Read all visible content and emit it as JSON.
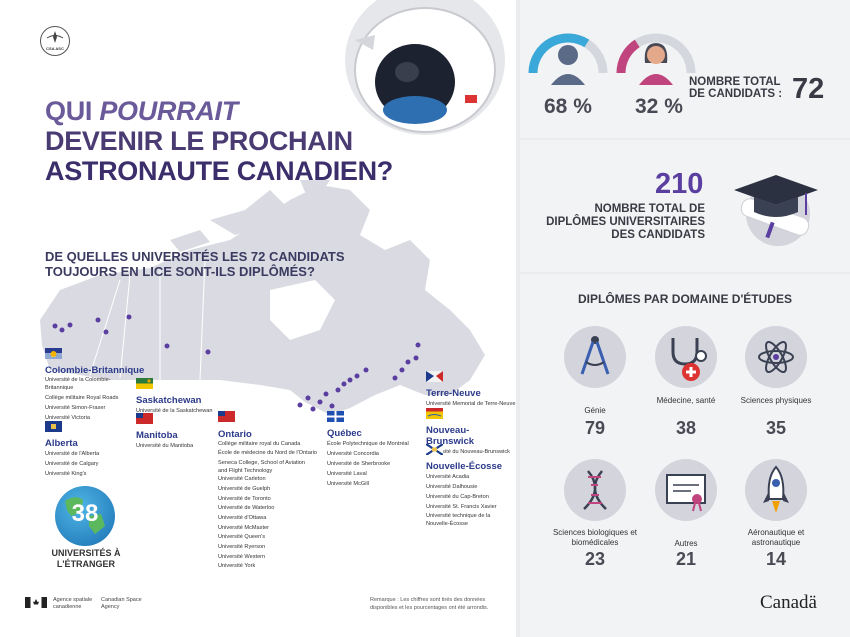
{
  "agency_logo": {
    "text": "CSA ASC"
  },
  "title": {
    "line1_a": "QUI ",
    "line1_b": "POURRAIT",
    "line2": "DEVENIR LE PROCHAIN",
    "line3": "ASTRONAUTE CANADIEN?"
  },
  "question": "DE QUELLES UNIVERSITÉS LES 72 CANDIDATS TOUJOURS EN LICE SONT-ILS DIPLÔMÉS?",
  "provinces": {
    "bc": {
      "name": "Colombie-Britannique",
      "unis": [
        "Université de la Colombie-Britannique",
        "Collège militaire Royal Roads",
        "Université Simon-Fraser",
        "Université Victoria"
      ]
    },
    "alberta": {
      "name": "Alberta",
      "unis": [
        "Université de l'Alberta",
        "Université de Calgary",
        "Université King's"
      ]
    },
    "saskatchewan": {
      "name": "Saskatchewan",
      "unis": [
        "Université de la Saskatchewan"
      ]
    },
    "manitoba": {
      "name": "Manitoba",
      "unis": [
        "Université du Manitoba"
      ]
    },
    "ontario": {
      "name": "Ontario",
      "unis": [
        "Collège militaire royal du Canada",
        "École de médecine du Nord de l'Ontario",
        "Seneca College, School of Aviation and Flight Technology",
        "Université Carleton",
        "Université de Guelph",
        "Université de Toronto",
        "Université de Waterloo",
        "Université d'Ottawa",
        "Université McMaster",
        "Université Queen's",
        "Université Ryerson",
        "Université Western",
        "Université York"
      ]
    },
    "quebec": {
      "name": "Québec",
      "unis": [
        "École Polytechnique de Montréal",
        "Université Concordia",
        "Université de Sherbrooke",
        "Université Laval",
        "Université McGill"
      ]
    },
    "nl": {
      "name": "Terre-Neuve",
      "unis": [
        "Université Memorial de Terre-Neuve"
      ]
    },
    "nb": {
      "name": "Nouveau-Brunswick",
      "unis": [
        "Université du Nouveau-Brunswick"
      ]
    },
    "ns": {
      "name": "Nouvelle-Écosse",
      "unis": [
        "Université Acadia",
        "Université Dalhousie",
        "Université du Cap-Breton",
        "Université St. Francis Xavier",
        "Université technique de la Nouvelle-Écosse"
      ]
    }
  },
  "foreign": {
    "count": "38",
    "label": "UNIVERSITÉS À L'ÉTRANGER"
  },
  "footer": {
    "agency_fr": "Agence spatiale canadienne",
    "agency_en": "Canadian Space Agency",
    "remark": "Remarque : Les chiffres sont tirés des données disponibles et les pourcentages ont été arrondis.",
    "wordmark": "Canadä"
  },
  "gender": {
    "male_pct": "68 %",
    "female_pct": "32 %",
    "male_value": 0.68,
    "female_value": 0.32
  },
  "total_candidates": {
    "label": "NOMBRE TOTAL DE CANDIDATS :",
    "value": "72"
  },
  "degrees": {
    "value": "210",
    "label": "NOMBRE TOTAL DE DIPLÔMES UNIVERSITAIRES DES CANDIDATS"
  },
  "fields": {
    "title": "DIPLÔMES PAR DOMAINE D'ÉTUDES",
    "items": [
      {
        "label": "Génie",
        "value": "79",
        "icon": "compass-icon"
      },
      {
        "label": "Médecine, santé",
        "value": "38",
        "icon": "stethoscope-icon"
      },
      {
        "label": "Sciences physiques",
        "value": "35",
        "icon": "atom-icon"
      },
      {
        "label": "Sciences biologiques et biomédicales",
        "value": "23",
        "icon": "dna-icon"
      },
      {
        "label": "Autres",
        "value": "21",
        "icon": "certificate-icon"
      },
      {
        "label": "Aéronautique et astronautique",
        "value": "14",
        "icon": "rocket-icon"
      }
    ]
  },
  "colors": {
    "accent_purple": "#5a3ea0",
    "male_blue": "#3aa8d8",
    "female_pink": "#c0457e",
    "map_gray": "#d6d7df"
  }
}
